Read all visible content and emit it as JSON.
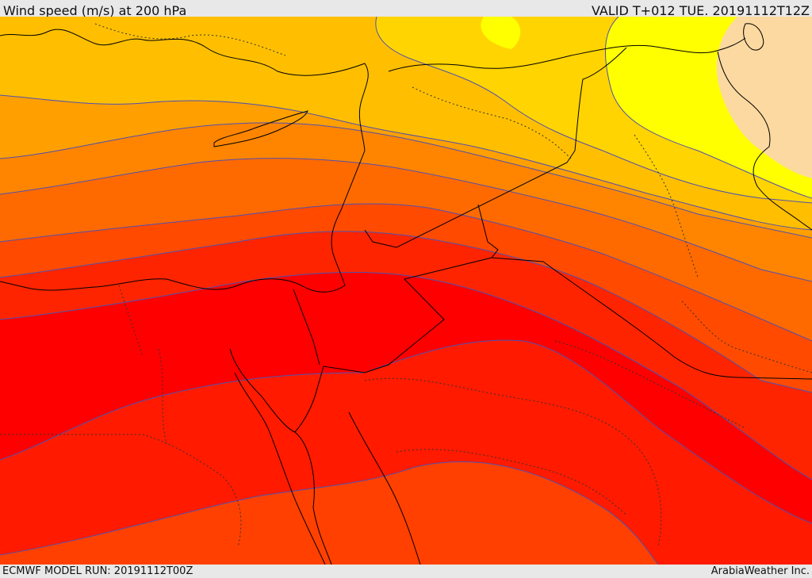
{
  "header": {
    "title": "Wind speed (m/s) at 200 hPa",
    "valid": "VALID T+012 TUE. 20191112T12Z"
  },
  "footer": {
    "model_run": "ECMWF MODEL RUN: 20191112T00Z",
    "credit": "ArabiaWeather Inc."
  },
  "colors": {
    "band_light_peach": "#fcd9a0",
    "band_yellow": "#ffff00",
    "band_light_yellow_orange": "#ffd700",
    "band_amber": "#ffbf00",
    "band_orange_light": "#ffa500",
    "band_orange": "#ff8c00",
    "band_dark_orange": "#ff6a00",
    "band_orange_red": "#ff4500",
    "band_red_orange": "#ff2800",
    "band_red": "#ff0000",
    "contour": "#5050b0",
    "border": "#000000"
  }
}
